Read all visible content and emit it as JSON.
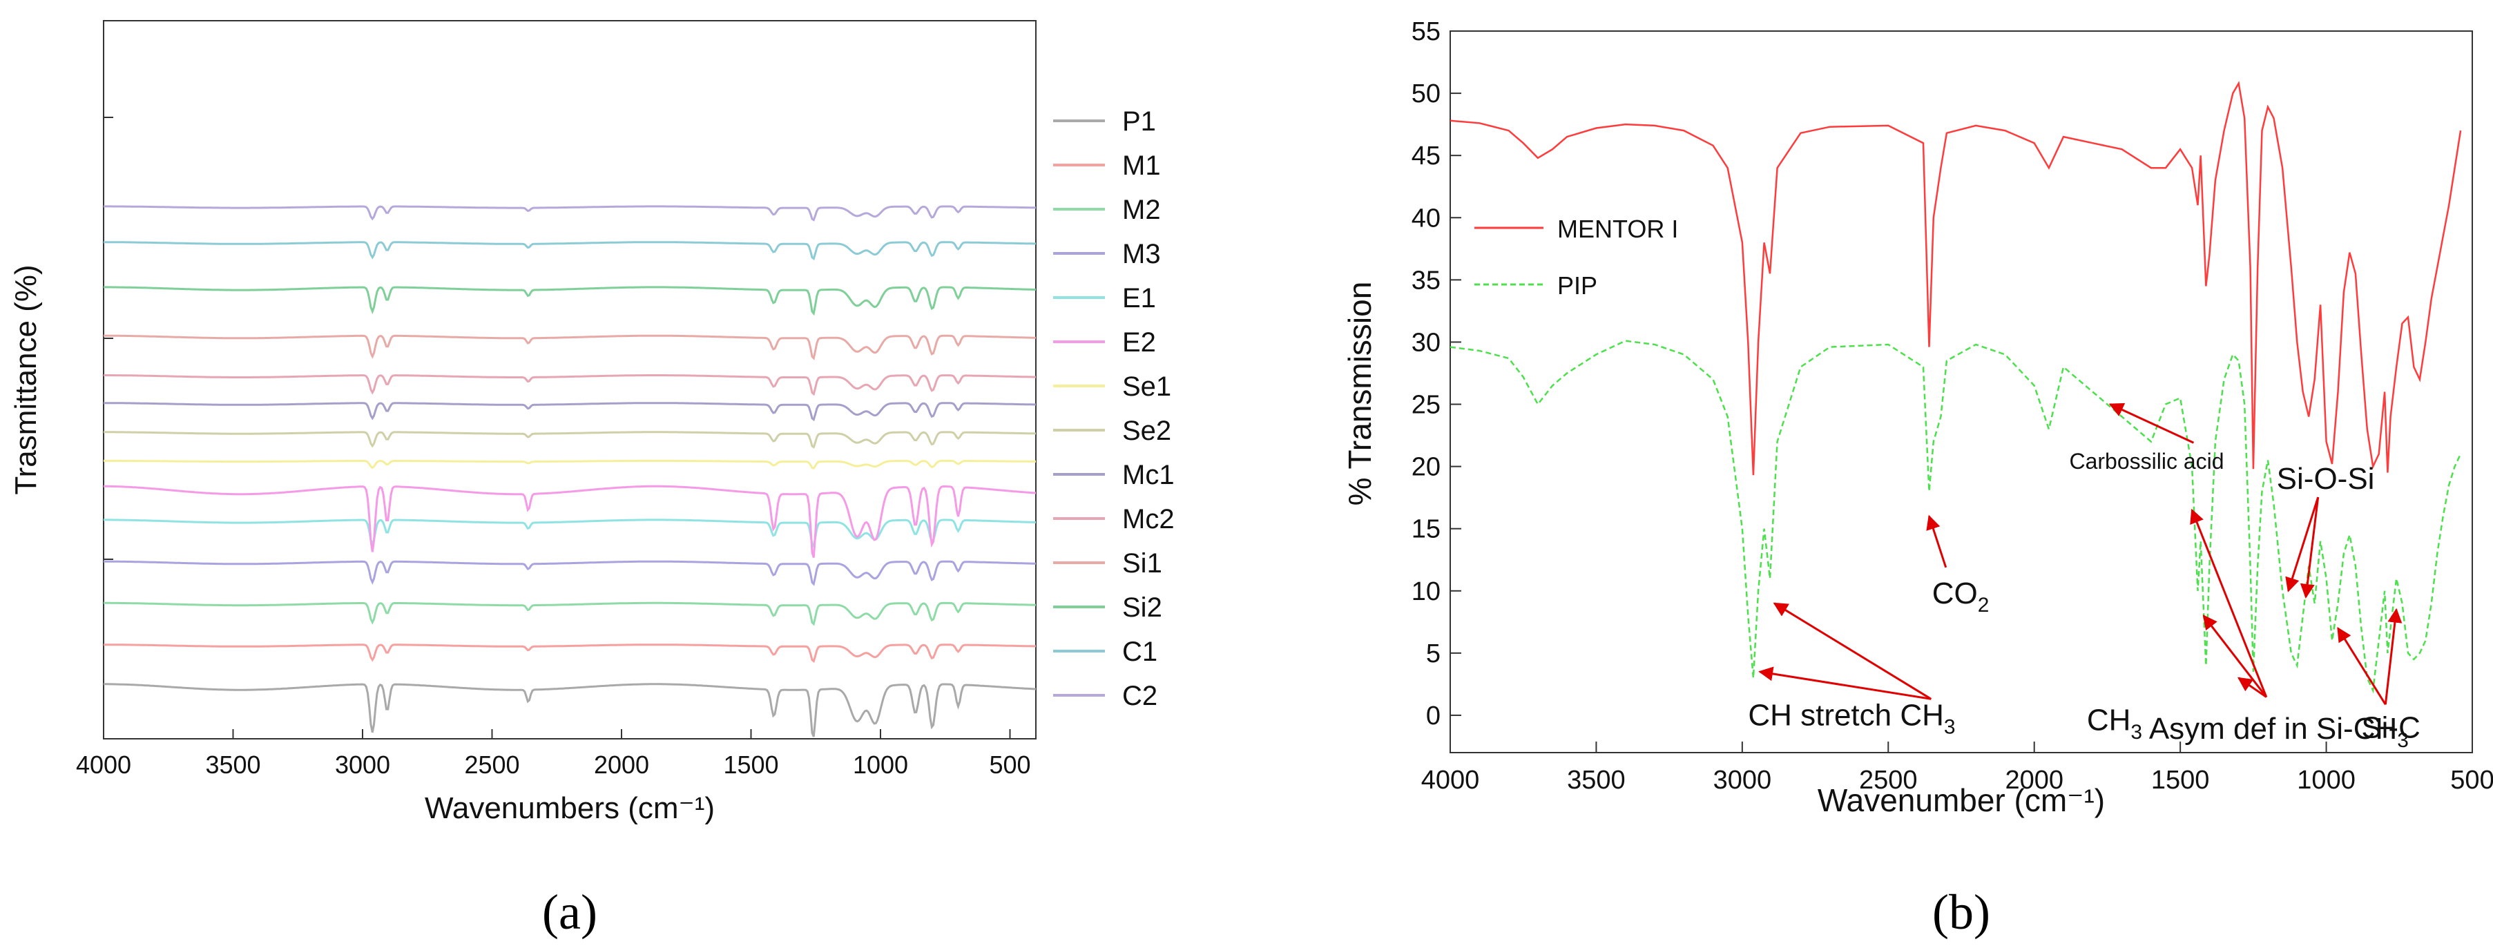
{
  "chart_data": [
    {
      "panel": "(a)",
      "type": "line",
      "title": "",
      "xlabel": "Wavenumbers (cm⁻¹)",
      "ylabel": "Trasmittance (%)",
      "xlim": [
        4000,
        400
      ],
      "x_ticks": [
        4000,
        3500,
        3000,
        2500,
        2000,
        1500,
        1000,
        500
      ],
      "y_tick_labels": "none",
      "legend": "right",
      "series": [
        {
          "name": "P1",
          "color": "#a9a9a9",
          "offset_rank": 0
        },
        {
          "name": "M1",
          "color": "#f6a0a0",
          "offset_rank": 1
        },
        {
          "name": "M2",
          "color": "#8fdba8",
          "offset_rank": 2
        },
        {
          "name": "M3",
          "color": "#a9a3e0",
          "offset_rank": 3
        },
        {
          "name": "E1",
          "color": "#8fe3e3",
          "offset_rank": 4
        },
        {
          "name": "E2",
          "color": "#f59ae6",
          "offset_rank": 5
        },
        {
          "name": "Se1",
          "color": "#f5ef9a",
          "offset_rank": 6
        },
        {
          "name": "Se2",
          "color": "#cfcfa8",
          "offset_rank": 7
        },
        {
          "name": "Mc1",
          "color": "#a59fc9",
          "offset_rank": 8
        },
        {
          "name": "Mc2",
          "color": "#e7a6b4",
          "offset_rank": 9
        },
        {
          "name": "Si1",
          "color": "#e8aaa6",
          "offset_rank": 10
        },
        {
          "name": "Si2",
          "color": "#7fcf98",
          "offset_rank": 11
        },
        {
          "name": "C1",
          "color": "#8ccbd6",
          "offset_rank": 12
        },
        {
          "name": "C2",
          "color": "#b7a8dc",
          "offset_rank": 13
        }
      ],
      "characteristic_bands": [
        2962,
        2905,
        2360,
        1412,
        1260,
        1090,
        1020,
        865,
        800,
        700
      ]
    },
    {
      "panel": "(b)",
      "type": "line",
      "title": "",
      "xlabel": "Wavenumber (cm⁻¹)",
      "ylabel": "% Transmission",
      "xlim": [
        4000,
        500
      ],
      "ylim": [
        -3,
        55
      ],
      "x_ticks": [
        4000,
        3500,
        3000,
        2500,
        2000,
        1500,
        1000,
        500
      ],
      "y_ticks": [
        0,
        5,
        10,
        15,
        20,
        25,
        30,
        35,
        40,
        45,
        50,
        55
      ],
      "legend": "top-left",
      "series": [
        {
          "name": "MENTOR I",
          "color": "#ff3b3b",
          "style": "solid",
          "x": [
            4000,
            3900,
            3800,
            3750,
            3700,
            3650,
            3600,
            3500,
            3400,
            3300,
            3200,
            3100,
            3050,
            3000,
            2980,
            2962,
            2945,
            2925,
            2905,
            2880,
            2800,
            2700,
            2500,
            2380,
            2360,
            2345,
            2320,
            2300,
            2200,
            2100,
            2000,
            1950,
            1900,
            1800,
            1700,
            1600,
            1550,
            1500,
            1460,
            1440,
            1430,
            1412,
            1400,
            1380,
            1350,
            1320,
            1300,
            1280,
            1260,
            1250,
            1235,
            1220,
            1200,
            1180,
            1150,
            1120,
            1100,
            1080,
            1060,
            1040,
            1020,
            1000,
            980,
            960,
            940,
            920,
            900,
            880,
            860,
            840,
            820,
            800,
            790,
            780,
            760,
            740,
            720,
            700,
            680,
            660,
            640,
            620,
            600,
            580,
            560,
            540
          ],
          "y": [
            47.8,
            47.6,
            47.0,
            46.0,
            44.8,
            45.5,
            46.5,
            47.2,
            47.5,
            47.4,
            47.0,
            45.8,
            44.0,
            38.0,
            30.0,
            19.3,
            30.0,
            38.0,
            35.5,
            44.0,
            46.8,
            47.3,
            47.4,
            46.0,
            29.6,
            40.0,
            44.0,
            46.8,
            47.4,
            47.0,
            46.0,
            44.0,
            46.5,
            46.0,
            45.5,
            44.0,
            44.0,
            45.5,
            44.0,
            41.0,
            45.0,
            34.5,
            37.0,
            43.0,
            47.0,
            50.0,
            50.8,
            48.0,
            36.0,
            19.8,
            36.0,
            47.0,
            48.9,
            48.0,
            44.0,
            36.0,
            30.0,
            26.0,
            24.0,
            27.0,
            33.0,
            22.0,
            20.2,
            26.0,
            34.0,
            37.2,
            35.5,
            29.0,
            23.0,
            20.0,
            21.0,
            26.0,
            19.5,
            24.0,
            28.0,
            31.5,
            32.0,
            28.0,
            27.0,
            30.0,
            33.5,
            36.0,
            38.5,
            41.0,
            44.0,
            47.0
          ]
        },
        {
          "name": "PIP",
          "color": "#4ce04c",
          "style": "dashed",
          "x": [
            4000,
            3900,
            3800,
            3750,
            3700,
            3650,
            3600,
            3500,
            3400,
            3300,
            3200,
            3100,
            3050,
            3000,
            2980,
            2962,
            2945,
            2925,
            2905,
            2880,
            2800,
            2700,
            2500,
            2380,
            2360,
            2345,
            2320,
            2300,
            2200,
            2100,
            2000,
            1950,
            1900,
            1800,
            1700,
            1600,
            1550,
            1500,
            1460,
            1440,
            1430,
            1412,
            1400,
            1380,
            1350,
            1320,
            1300,
            1280,
            1260,
            1250,
            1235,
            1220,
            1200,
            1180,
            1150,
            1120,
            1100,
            1080,
            1060,
            1040,
            1020,
            1000,
            980,
            960,
            940,
            920,
            900,
            880,
            860,
            840,
            820,
            800,
            790,
            780,
            760,
            740,
            720,
            700,
            680,
            660,
            640,
            620,
            600,
            580,
            560,
            540
          ],
          "y": [
            29.6,
            29.3,
            28.7,
            27.2,
            25.0,
            26.5,
            27.5,
            29.0,
            30.1,
            29.8,
            29.0,
            27.0,
            24.0,
            15.0,
            8.0,
            3.0,
            10.0,
            15.0,
            11.0,
            22.0,
            28.0,
            29.6,
            29.8,
            28.0,
            18.0,
            22.0,
            24.0,
            28.5,
            29.8,
            29.0,
            26.5,
            23.0,
            28.0,
            26.0,
            24.0,
            22.0,
            25.0,
            25.5,
            20.0,
            10.0,
            14.0,
            4.0,
            12.0,
            22.0,
            27.0,
            29.0,
            28.5,
            25.0,
            12.0,
            3.5,
            12.0,
            18.0,
            20.5,
            17.0,
            10.0,
            5.0,
            4.0,
            8.0,
            12.0,
            9.0,
            14.0,
            11.0,
            6.0,
            9.0,
            13.0,
            14.5,
            12.0,
            7.0,
            3.0,
            2.0,
            6.0,
            10.0,
            5.0,
            7.0,
            11.0,
            9.0,
            5.0,
            4.5,
            5.0,
            6.0,
            9.0,
            13.0,
            16.0,
            18.5,
            20.0,
            21.0
          ]
        }
      ],
      "annotations": [
        {
          "text": "Carbossilic acid",
          "at_x": 1880,
          "at_y": 19.8,
          "arrow_to": [
            1740,
            25.0
          ]
        },
        {
          "text": "Si-O-Si",
          "at_x": 1170,
          "at_y": 18.2,
          "arrow_to": [
            [
              1130,
              10.0
            ],
            [
              1070,
              9.5
            ]
          ]
        },
        {
          "text": "CO",
          "sub": "2",
          "at_x": 2350,
          "at_y": 9.0,
          "arrow_to": [
            2360,
            16.0
          ]
        },
        {
          "text": "CH stretch CH",
          "sub": "3",
          "at_x": 2980,
          "at_y": -0.8,
          "arrow_to": [
            [
              2890,
              9.0
            ],
            [
              2940,
              3.5
            ]
          ]
        },
        {
          "text": "CH",
          "sub": "3",
          "text2": " Asym def in Si-CH",
          "sub2": "3",
          "at_x": 1820,
          "at_y": -1.2,
          "arrow_to": [
            [
              1460,
              16.5
            ],
            [
              1420,
              8.0
            ],
            [
              1300,
              3.0
            ]
          ]
        },
        {
          "text": "Si-C",
          "at_x": 880,
          "at_y": -1.8,
          "arrow_to": [
            [
              960,
              7.0
            ],
            [
              760,
              8.5
            ]
          ]
        }
      ]
    }
  ],
  "captions": [
    "(a)",
    "(b)"
  ]
}
